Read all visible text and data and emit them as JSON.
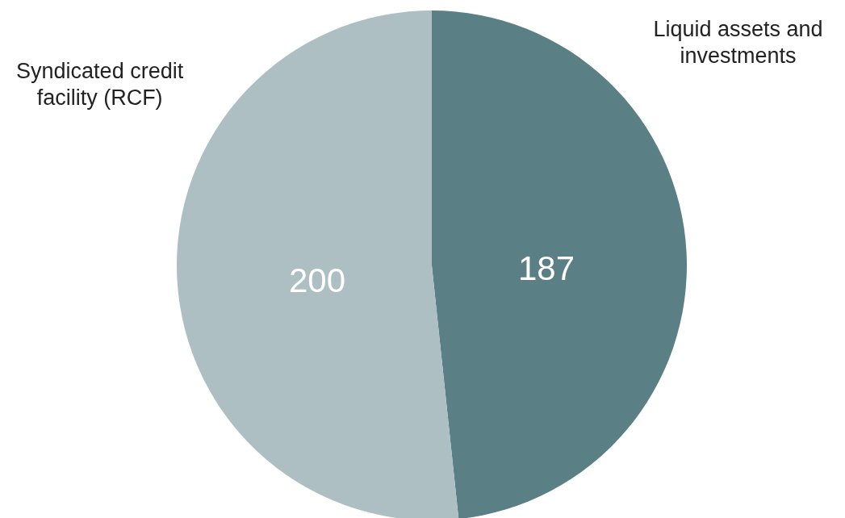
{
  "chart_data": {
    "type": "pie",
    "categories": [
      "Liquid assets and investments",
      "Syndicated credit facility (RCF)"
    ],
    "values": [
      187,
      200
    ],
    "colors": [
      "#5a8086",
      "#adbfc3"
    ],
    "data_labels": true
  }
}
